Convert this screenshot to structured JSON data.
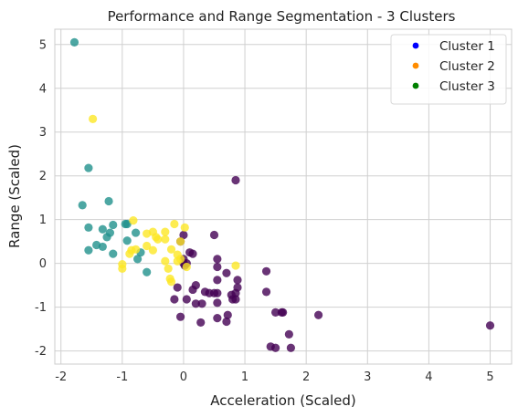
{
  "chart_data": {
    "type": "scatter",
    "title": "Performance and Range Segmentation - 3 Clusters",
    "xlabel": "Acceleration (Scaled)",
    "ylabel": "Range (Scaled)",
    "xlim": [
      -2.1,
      5.35
    ],
    "ylim": [
      -2.3,
      5.35
    ],
    "xticks": [
      -2,
      -1,
      0,
      1,
      2,
      3,
      4,
      5
    ],
    "yticks": [
      -2,
      -1,
      0,
      1,
      2,
      3,
      4,
      5
    ],
    "grid": true,
    "legend_position": "top-right",
    "legend": [
      {
        "label": "Cluster 1",
        "color": "#0000ff"
      },
      {
        "label": "Cluster 2",
        "color": "#ff8c00"
      },
      {
        "label": "Cluster 3",
        "color": "#008000"
      }
    ],
    "series": [
      {
        "color": "#440154",
        "points": [
          [
            0.85,
            1.9
          ],
          [
            5.0,
            -1.42
          ],
          [
            2.2,
            -1.18
          ],
          [
            1.35,
            -0.18
          ],
          [
            1.35,
            -0.65
          ],
          [
            1.5,
            -1.12
          ],
          [
            1.6,
            -1.12
          ],
          [
            1.62,
            -1.12
          ],
          [
            1.42,
            -1.9
          ],
          [
            1.5,
            -1.93
          ],
          [
            1.72,
            -1.62
          ],
          [
            1.75,
            -1.93
          ],
          [
            0.88,
            -0.38
          ],
          [
            0.88,
            -0.55
          ],
          [
            0.85,
            -0.68
          ],
          [
            0.78,
            -0.72
          ],
          [
            0.8,
            -0.82
          ],
          [
            0.85,
            -0.82
          ],
          [
            0.72,
            -1.18
          ],
          [
            0.7,
            -1.33
          ],
          [
            0.7,
            -0.22
          ],
          [
            0.55,
            -0.08
          ],
          [
            0.55,
            -0.38
          ],
          [
            0.55,
            -0.68
          ],
          [
            0.55,
            -0.9
          ],
          [
            0.55,
            -1.25
          ],
          [
            0.35,
            -0.65
          ],
          [
            0.42,
            -0.68
          ],
          [
            0.5,
            -0.68
          ],
          [
            0.2,
            -0.92
          ],
          [
            0.3,
            -0.92
          ],
          [
            0.28,
            -1.35
          ],
          [
            0.05,
            -0.82
          ],
          [
            0.15,
            -0.6
          ],
          [
            0.2,
            -0.5
          ],
          [
            -0.1,
            -0.55
          ],
          [
            -0.05,
            -1.22
          ],
          [
            -0.15,
            -0.82
          ],
          [
            0.1,
            0.25
          ],
          [
            0.15,
            0.22
          ],
          [
            0.0,
            0.0
          ],
          [
            0.05,
            0.0
          ],
          [
            0.02,
            -0.05
          ],
          [
            0.0,
            0.65
          ],
          [
            0.5,
            0.65
          ],
          [
            0.55,
            0.1
          ],
          [
            -0.05,
            0.5
          ],
          [
            0.0,
            0.1
          ]
        ]
      },
      {
        "color": "#21918c",
        "points": [
          [
            -1.78,
            5.05
          ],
          [
            -1.55,
            2.18
          ],
          [
            -1.65,
            1.33
          ],
          [
            -1.22,
            1.42
          ],
          [
            -1.55,
            0.82
          ],
          [
            -1.15,
            0.88
          ],
          [
            -1.32,
            0.78
          ],
          [
            -1.2,
            0.7
          ],
          [
            -1.25,
            0.6
          ],
          [
            -1.55,
            0.3
          ],
          [
            -1.42,
            0.42
          ],
          [
            -1.32,
            0.38
          ],
          [
            -1.15,
            0.22
          ],
          [
            -0.95,
            0.9
          ],
          [
            -0.92,
            0.9
          ],
          [
            -0.78,
            0.7
          ],
          [
            -0.92,
            0.52
          ],
          [
            -0.75,
            0.1
          ],
          [
            -0.6,
            -0.2
          ],
          [
            -0.7,
            0.25
          ]
        ]
      },
      {
        "color": "#fde725",
        "points": [
          [
            -1.48,
            3.3
          ],
          [
            -0.82,
            0.98
          ],
          [
            -0.6,
            0.68
          ],
          [
            -0.5,
            0.72
          ],
          [
            -0.45,
            0.6
          ],
          [
            -0.3,
            0.72
          ],
          [
            -0.15,
            0.9
          ],
          [
            0.02,
            0.82
          ],
          [
            -0.3,
            0.55
          ],
          [
            -0.42,
            0.55
          ],
          [
            -0.6,
            0.4
          ],
          [
            -0.5,
            0.3
          ],
          [
            -0.85,
            0.3
          ],
          [
            -0.78,
            0.32
          ],
          [
            -0.88,
            0.22
          ],
          [
            -1.0,
            -0.02
          ],
          [
            -1.0,
            -0.12
          ],
          [
            -0.2,
            0.32
          ],
          [
            -0.1,
            0.2
          ],
          [
            -0.05,
            0.1
          ],
          [
            -0.25,
            -0.12
          ],
          [
            -0.22,
            -0.35
          ],
          [
            -0.2,
            -0.42
          ],
          [
            -0.1,
            0.05
          ],
          [
            0.05,
            -0.08
          ],
          [
            -0.05,
            0.5
          ],
          [
            0.85,
            -0.05
          ],
          [
            -0.3,
            0.05
          ]
        ]
      }
    ]
  }
}
